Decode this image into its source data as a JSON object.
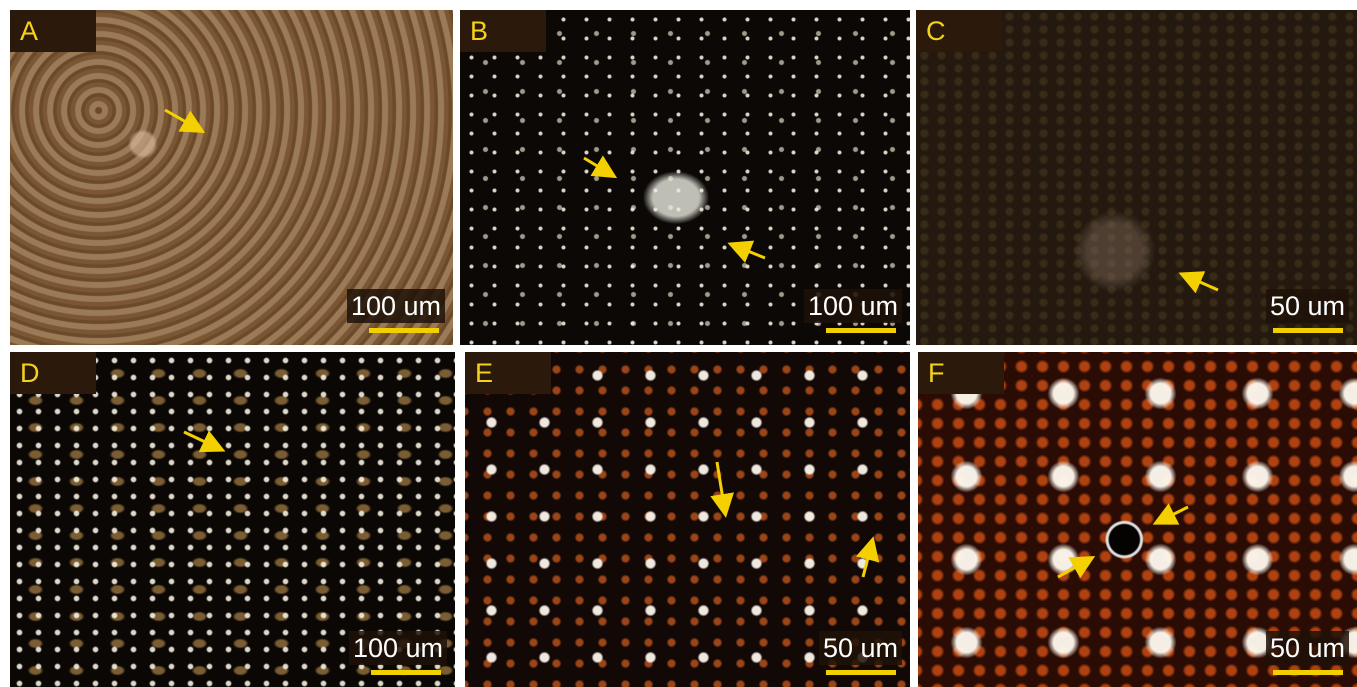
{
  "panels": [
    {
      "label": "A",
      "scale": "100 um"
    },
    {
      "label": "B",
      "scale": "100 um"
    },
    {
      "label": "C",
      "scale": "50 um"
    },
    {
      "label": "D",
      "scale": "100 um"
    },
    {
      "label": "E",
      "scale": "50 um"
    },
    {
      "label": "F",
      "scale": "50 um"
    }
  ]
}
